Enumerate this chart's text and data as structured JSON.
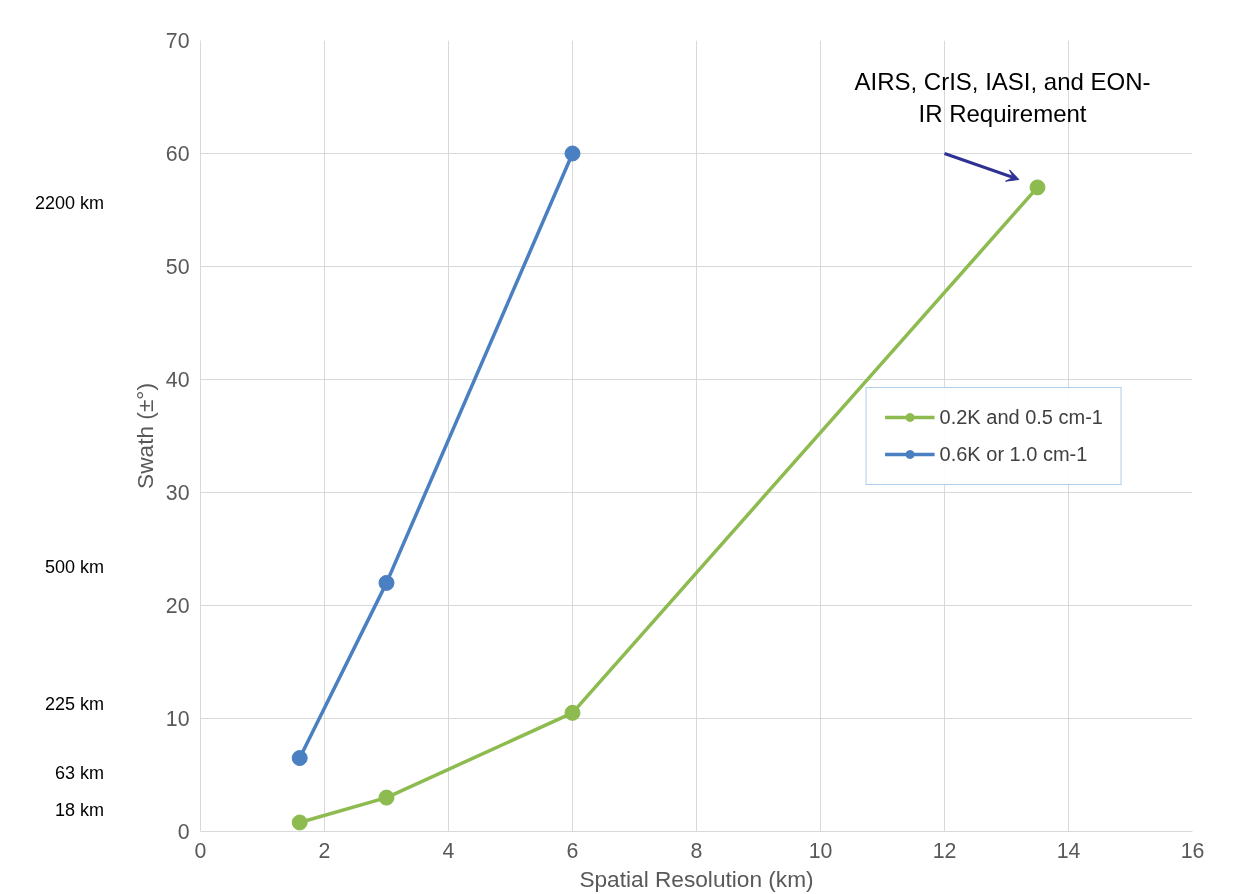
{
  "chart_data": {
    "type": "line",
    "xlabel": "Spatial Resolution (km)",
    "ylabel": "Swath (±°)",
    "xlim": [
      0,
      16
    ],
    "xticks": [
      0,
      2,
      4,
      6,
      8,
      10,
      12,
      14,
      16
    ],
    "ylim": [
      0,
      70
    ],
    "yticks": [
      0,
      10,
      20,
      30,
      40,
      50,
      60,
      70
    ],
    "series": [
      {
        "name": "0.2K and 0.5 cm-1",
        "color": "#8dbb4f",
        "x": [
          1.6,
          3,
          6,
          13.5
        ],
        "values": [
          0.8,
          3,
          10.5,
          57
        ]
      },
      {
        "name": "0.6K or 1.0 cm-1",
        "color": "#4a7fc1",
        "x": [
          1.6,
          3,
          6
        ],
        "values": [
          6.5,
          22,
          60
        ]
      }
    ],
    "annotations": [
      {
        "text": "AIRS, CrIS, IASI, and EON-\nIR Requirement",
        "x": 13.5,
        "y": 57
      },
      "2200 km",
      "500 km",
      "225 km",
      "63 km",
      "18 km"
    ],
    "grid": true,
    "legend": "right",
    "marker": "circle",
    "line_style": "solid"
  }
}
